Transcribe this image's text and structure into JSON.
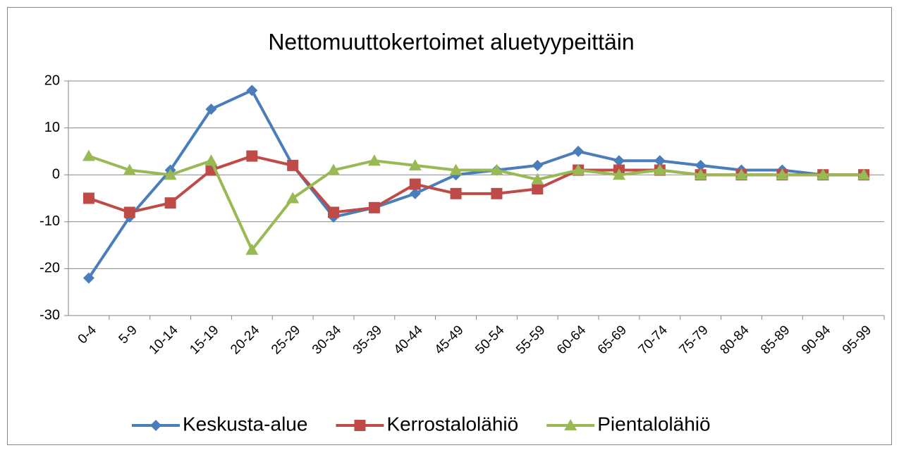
{
  "chart_data": {
    "type": "line",
    "title": "Nettomuuttokertoimet aluetyypeittäin",
    "categories": [
      "0-4",
      "5-9",
      "10-14",
      "15-19",
      "20-24",
      "25-29",
      "30-34",
      "35-39",
      "40-44",
      "45-49",
      "50-54",
      "55-59",
      "60-64",
      "65-69",
      "70-74",
      "75-79",
      "80-84",
      "85-89",
      "90-94",
      "95-99"
    ],
    "series": [
      {
        "name": "Keskusta-alue",
        "color": "#4a7ebb",
        "marker": "diamond",
        "values": [
          -22,
          -9,
          1,
          14,
          18,
          2,
          -9,
          -7,
          -4,
          0,
          1,
          2,
          5,
          3,
          3,
          2,
          1,
          1,
          0,
          0
        ]
      },
      {
        "name": "Kerrostalolähiö",
        "color": "#be4b48",
        "marker": "square",
        "values": [
          -5,
          -8,
          -6,
          1,
          4,
          2,
          -8,
          -7,
          -2,
          -4,
          -4,
          -3,
          1,
          1,
          1,
          0,
          0,
          0,
          0,
          0
        ]
      },
      {
        "name": "Pientalolähiö",
        "color": "#98b954",
        "marker": "triangle",
        "values": [
          4,
          1,
          0,
          3,
          -16,
          -5,
          1,
          3,
          2,
          1,
          1,
          -1,
          1,
          0,
          1,
          0,
          0,
          0,
          0,
          0
        ]
      }
    ],
    "ylim": [
      -30,
      20
    ],
    "yticks": [
      -30,
      -20,
      -10,
      0,
      10,
      20
    ],
    "grid": true,
    "legend": "bottom"
  }
}
